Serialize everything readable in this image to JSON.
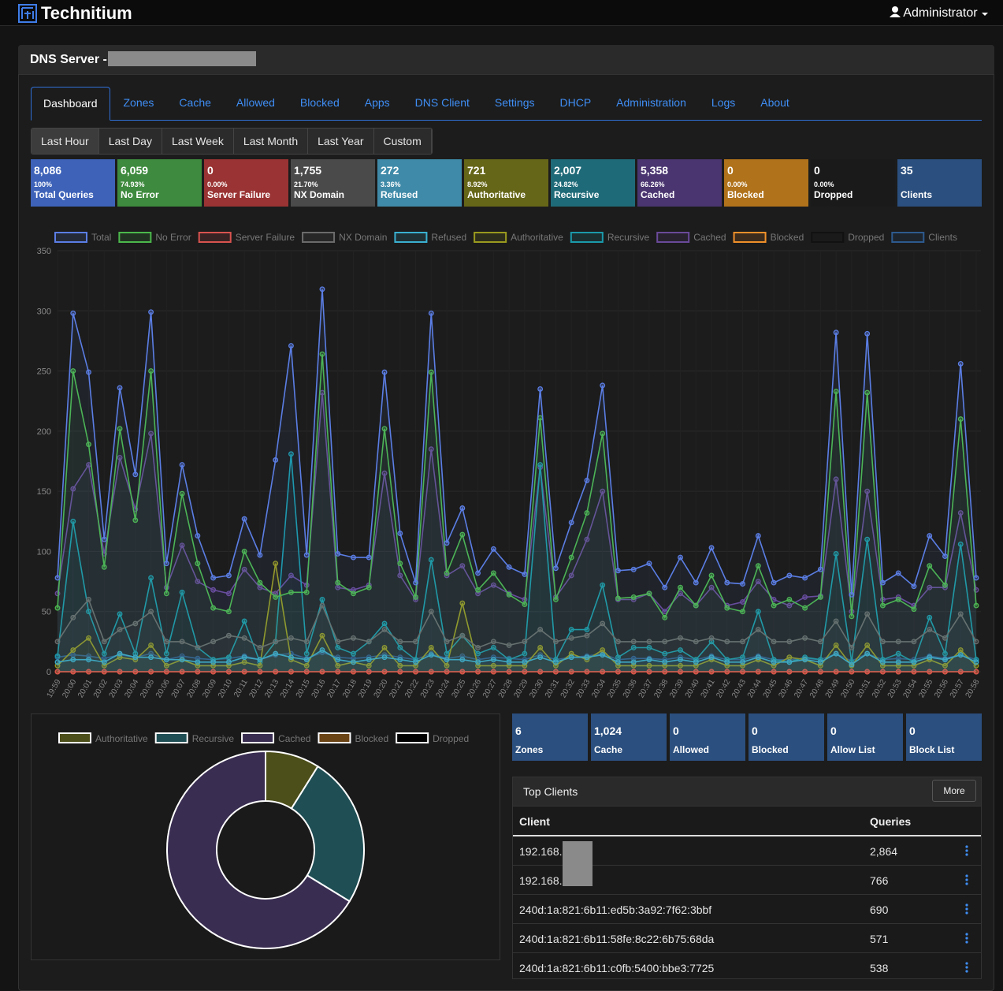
{
  "header": {
    "brand": "Technitium",
    "user": "Administrator"
  },
  "title": "DNS Server -",
  "tabs": [
    "Dashboard",
    "Zones",
    "Cache",
    "Allowed",
    "Blocked",
    "Apps",
    "DNS Client",
    "Settings",
    "DHCP",
    "Administration",
    "Logs",
    "About"
  ],
  "ranges": [
    "Last Hour",
    "Last Day",
    "Last Week",
    "Last Month",
    "Last Year",
    "Custom"
  ],
  "stats": [
    {
      "value": "8,086",
      "percent": "100%",
      "label": "Total Queries",
      "color": "#3d62b8"
    },
    {
      "value": "6,059",
      "percent": "74.93%",
      "label": "No Error",
      "color": "#3e8a3e"
    },
    {
      "value": "0",
      "percent": "0.00%",
      "label": "Server Failure",
      "color": "#9a3333"
    },
    {
      "value": "1,755",
      "percent": "21.70%",
      "label": "NX Domain",
      "color": "#4a4a4a"
    },
    {
      "value": "272",
      "percent": "3.36%",
      "label": "Refused",
      "color": "#3f8aa8"
    },
    {
      "value": "721",
      "percent": "8.92%",
      "label": "Authoritative",
      "color": "#666618"
    },
    {
      "value": "2,007",
      "percent": "24.82%",
      "label": "Recursive",
      "color": "#1f6a78"
    },
    {
      "value": "5,358",
      "percent": "66.26%",
      "label": "Cached",
      "color": "#4a3570"
    },
    {
      "value": "0",
      "percent": "0.00%",
      "label": "Blocked",
      "color": "#b0721a"
    },
    {
      "value": "0",
      "percent": "0.00%",
      "label": "Dropped",
      "color": "#1a1a1a"
    },
    {
      "value": "35",
      "label": "Clients",
      "color": "#2b4f7e"
    }
  ],
  "chart_data": [
    {
      "type": "line",
      "grid": true,
      "x": [
        "19:59",
        "20:00",
        "20:01",
        "20:02",
        "20:03",
        "20:04",
        "20:05",
        "20:06",
        "20:07",
        "20:08",
        "20:09",
        "20:10",
        "20:11",
        "20:12",
        "20:13",
        "20:14",
        "20:15",
        "20:16",
        "20:17",
        "20:18",
        "20:19",
        "20:20",
        "20:21",
        "20:22",
        "20:23",
        "20:24",
        "20:25",
        "20:26",
        "20:27",
        "20:28",
        "20:29",
        "20:30",
        "20:31",
        "20:32",
        "20:33",
        "20:34",
        "20:35",
        "20:36",
        "20:37",
        "20:38",
        "20:39",
        "20:40",
        "20:41",
        "20:42",
        "20:43",
        "20:44",
        "20:45",
        "20:46",
        "20:47",
        "20:48",
        "20:49",
        "20:50",
        "20:51",
        "20:52",
        "20:53",
        "20:54",
        "20:55",
        "20:56",
        "20:57",
        "20:58"
      ],
      "ylim": [
        0,
        350
      ],
      "yticks": [
        0,
        50,
        100,
        150,
        200,
        250,
        300,
        350
      ],
      "series": [
        {
          "name": "Total",
          "color": "#5b7ee5",
          "values": [
            78,
            298,
            249,
            110,
            236,
            164,
            299,
            90,
            172,
            113,
            78,
            80,
            127,
            97,
            176,
            271,
            97,
            318,
            98,
            95,
            95,
            249,
            115,
            74,
            298,
            107,
            136,
            82,
            102,
            87,
            81,
            235,
            86,
            124,
            159,
            238,
            84,
            85,
            90,
            70,
            95,
            74,
            103,
            74,
            73,
            113,
            74,
            80,
            78,
            85,
            282,
            64,
            281,
            74,
            82,
            71,
            113,
            96,
            256,
            78
          ]
        },
        {
          "name": "No Error",
          "color": "#4cb84c",
          "values": [
            53,
            250,
            189,
            87,
            202,
            126,
            250,
            65,
            148,
            90,
            53,
            50,
            100,
            74,
            62,
            66,
            66,
            264,
            74,
            65,
            70,
            202,
            90,
            62,
            249,
            82,
            114,
            68,
            82,
            64,
            56,
            211,
            60,
            95,
            132,
            198,
            61,
            62,
            65,
            45,
            70,
            55,
            80,
            53,
            50,
            88,
            55,
            60,
            53,
            62,
            233,
            46,
            232,
            55,
            60,
            52,
            88,
            72,
            210,
            55
          ]
        },
        {
          "name": "Server Failure",
          "color": "#d9534f",
          "values": [
            0,
            0,
            0,
            0,
            0,
            0,
            0,
            0,
            0,
            0,
            0,
            0,
            0,
            0,
            0,
            0,
            0,
            0,
            0,
            0,
            0,
            0,
            0,
            0,
            0,
            0,
            0,
            0,
            0,
            0,
            0,
            0,
            0,
            0,
            0,
            0,
            0,
            0,
            0,
            0,
            0,
            0,
            0,
            0,
            0,
            0,
            0,
            0,
            0,
            0,
            0,
            0,
            0,
            0,
            0,
            0,
            0,
            0,
            0,
            0
          ]
        },
        {
          "name": "NX Domain",
          "color": "#6b6b6b",
          "values": [
            25,
            45,
            60,
            25,
            35,
            40,
            50,
            25,
            25,
            20,
            25,
            30,
            28,
            20,
            25,
            28,
            25,
            55,
            25,
            28,
            25,
            35,
            25,
            25,
            50,
            25,
            30,
            20,
            25,
            22,
            25,
            35,
            25,
            28,
            30,
            40,
            25,
            25,
            25,
            25,
            28,
            25,
            28,
            25,
            25,
            35,
            25,
            25,
            28,
            25,
            42,
            20,
            48,
            25,
            25,
            25,
            35,
            28,
            48,
            25
          ]
        },
        {
          "name": "Refused",
          "color": "#3ab0d0",
          "values": [
            8,
            10,
            10,
            8,
            15,
            12,
            12,
            10,
            10,
            8,
            8,
            8,
            12,
            10,
            15,
            12,
            10,
            18,
            10,
            8,
            10,
            12,
            10,
            8,
            14,
            10,
            10,
            8,
            10,
            8,
            8,
            12,
            8,
            12,
            12,
            14,
            8,
            8,
            10,
            8,
            10,
            8,
            12,
            8,
            8,
            12,
            8,
            8,
            10,
            8,
            15,
            6,
            15,
            8,
            8,
            8,
            12,
            10,
            14,
            8
          ]
        },
        {
          "name": "Authoritative",
          "color": "#9a9a1f",
          "values": [
            5,
            18,
            28,
            5,
            12,
            10,
            22,
            5,
            10,
            5,
            5,
            5,
            8,
            5,
            90,
            10,
            5,
            30,
            5,
            8,
            5,
            20,
            5,
            5,
            20,
            5,
            57,
            5,
            5,
            5,
            5,
            20,
            5,
            15,
            10,
            18,
            5,
            5,
            5,
            5,
            5,
            5,
            10,
            5,
            5,
            10,
            5,
            12,
            10,
            5,
            22,
            5,
            22,
            5,
            5,
            5,
            10,
            5,
            18,
            5
          ]
        },
        {
          "name": "Recursive",
          "color": "#1a9aaa",
          "values": [
            13,
            125,
            50,
            15,
            48,
            15,
            78,
            15,
            66,
            20,
            10,
            12,
            42,
            8,
            25,
            181,
            15,
            60,
            20,
            15,
            25,
            40,
            20,
            10,
            93,
            15,
            30,
            15,
            20,
            10,
            15,
            172,
            10,
            35,
            35,
            72,
            12,
            20,
            20,
            15,
            18,
            10,
            25,
            10,
            12,
            50,
            10,
            8,
            12,
            10,
            98,
            8,
            110,
            10,
            15,
            8,
            45,
            15,
            106,
            10
          ]
        },
        {
          "name": "Cached",
          "color": "#6a4a9a",
          "values": [
            65,
            152,
            172,
            98,
            178,
            135,
            198,
            70,
            105,
            75,
            68,
            65,
            85,
            70,
            65,
            80,
            72,
            232,
            70,
            68,
            72,
            165,
            80,
            60,
            185,
            80,
            88,
            65,
            72,
            65,
            60,
            170,
            62,
            80,
            110,
            150,
            60,
            60,
            65,
            50,
            65,
            55,
            70,
            55,
            58,
            75,
            60,
            55,
            62,
            63,
            160,
            50,
            150,
            60,
            62,
            55,
            70,
            70,
            132,
            68
          ]
        },
        {
          "name": "Blocked",
          "color": "#f0902a",
          "values": [
            0,
            0,
            0,
            0,
            0,
            0,
            0,
            0,
            0,
            0,
            0,
            0,
            0,
            0,
            0,
            0,
            0,
            0,
            0,
            0,
            0,
            0,
            0,
            0,
            0,
            0,
            0,
            0,
            0,
            0,
            0,
            0,
            0,
            0,
            0,
            0,
            0,
            0,
            0,
            0,
            0,
            0,
            0,
            0,
            0,
            0,
            0,
            0,
            0,
            0,
            0,
            0,
            0,
            0,
            0,
            0,
            0,
            0,
            0,
            0
          ]
        },
        {
          "name": "Dropped",
          "color": "#111111",
          "values": [
            0,
            0,
            0,
            0,
            0,
            0,
            0,
            0,
            0,
            0,
            0,
            0,
            0,
            0,
            0,
            0,
            0,
            0,
            0,
            0,
            0,
            0,
            0,
            0,
            0,
            0,
            0,
            0,
            0,
            0,
            0,
            0,
            0,
            0,
            0,
            0,
            0,
            0,
            0,
            0,
            0,
            0,
            0,
            0,
            0,
            0,
            0,
            0,
            0,
            0,
            0,
            0,
            0,
            0,
            0,
            0,
            0,
            0,
            0,
            0
          ]
        },
        {
          "name": "Clients",
          "color": "#2d5a8e",
          "values": [
            12,
            14,
            13,
            11,
            14,
            12,
            15,
            10,
            13,
            11,
            10,
            11,
            13,
            10,
            14,
            15,
            11,
            16,
            12,
            11,
            12,
            14,
            12,
            10,
            15,
            11,
            13,
            10,
            12,
            11,
            10,
            14,
            10,
            12,
            13,
            15,
            10,
            11,
            11,
            10,
            12,
            10,
            13,
            10,
            10,
            13,
            10,
            10,
            11,
            10,
            15,
            9,
            15,
            10,
            11,
            10,
            13,
            11,
            14,
            10
          ]
        }
      ]
    },
    {
      "type": "pie",
      "categories": [
        "Authoritative",
        "Recursive",
        "Cached",
        "Blocked",
        "Dropped"
      ],
      "values": [
        721,
        2007,
        5358,
        0,
        0
      ],
      "colors": [
        "#4d4f1a",
        "#1f4f55",
        "#3a2d52",
        "#6b4416",
        "#000000"
      ]
    }
  ],
  "zone_stats": [
    {
      "value": "6",
      "label": "Zones"
    },
    {
      "value": "1,024",
      "label": "Cache"
    },
    {
      "value": "0",
      "label": "Allowed"
    },
    {
      "value": "0",
      "label": "Blocked"
    },
    {
      "value": "0",
      "label": "Allow List"
    },
    {
      "value": "0",
      "label": "Block List"
    }
  ],
  "top_clients": {
    "title": "Top Clients",
    "button": "More",
    "columns": [
      "Client",
      "Queries"
    ],
    "rows": [
      [
        "192.168.",
        "2,864"
      ],
      [
        "192.168.",
        "766"
      ],
      [
        "240d:1a:821:6b11:ed5b:3a92:7f62:3bbf",
        "690"
      ],
      [
        "240d:1a:821:6b11:58fe:8c22:6b75:68da",
        "571"
      ],
      [
        "240d:1a:821:6b11:c0fb:5400:bbe3:7725",
        "538"
      ]
    ]
  }
}
